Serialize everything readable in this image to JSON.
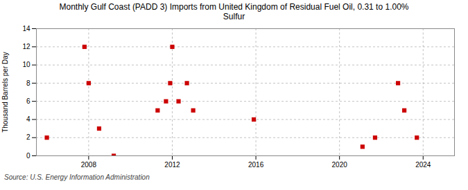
{
  "chart_data": {
    "type": "scatter",
    "title": "Monthly Gulf Coast (PADD 3) Imports from United Kingdom of Residual Fuel Oil, 0.31 to 1.00%\nSulfur",
    "ylabel": "Thousand Barrels per Day",
    "annotation": "Source: U.S. Energy Information Administration",
    "x": [
      2006.0,
      2007.8,
      2008.0,
      2008.5,
      2009.2,
      2011.3,
      2011.7,
      2011.9,
      2012.0,
      2012.3,
      2012.7,
      2013.0,
      2015.9,
      2021.1,
      2021.7,
      2022.8,
      2023.1,
      2023.7
    ],
    "values": [
      2,
      12,
      8,
      3,
      0,
      5,
      6,
      8,
      12,
      6,
      8,
      5,
      4,
      1,
      2,
      8,
      5,
      2
    ],
    "color": "#cc0000",
    "marker": "square",
    "xlim": [
      2005.5,
      2025.5
    ],
    "xticks": [
      2008,
      2012,
      2016,
      2020,
      2024
    ],
    "ylim": [
      0,
      14
    ],
    "yticks": [
      0,
      2,
      4,
      6,
      8,
      10,
      12,
      14
    ],
    "grid": true
  }
}
